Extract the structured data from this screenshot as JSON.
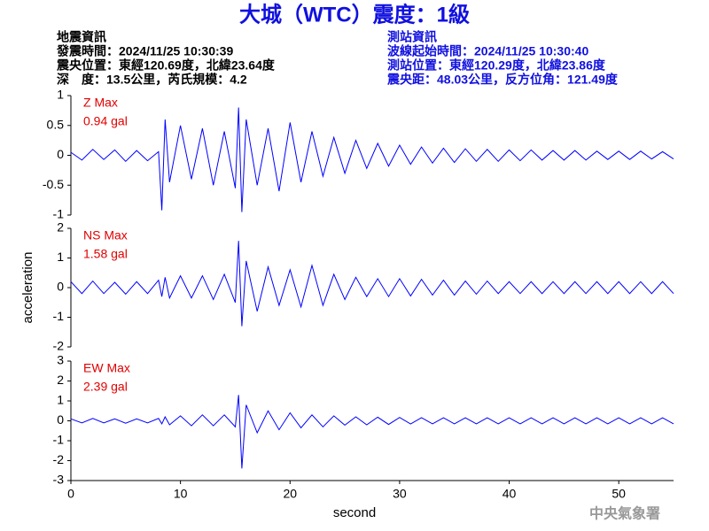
{
  "header": {
    "title": "大城（WTC）震度：1級",
    "left": [
      "地震資訊",
      "發震時間：2024/11/25 10:30:39",
      "震央位置：東經120.69度，北緯23.64度",
      "深　度：13.5公里，芮氏規模：4.2"
    ],
    "right": [
      "測站資訊",
      "波線起始時間：2024/11/25 10:30:40",
      "測站位置：東經120.29度，北緯23.86度",
      "震央距：48.03公里，反方位角：121.49度"
    ]
  },
  "footer": "中央氣象署",
  "chart_data": [
    {
      "type": "line",
      "annotations": [
        "Z Max",
        "0.94 gal"
      ],
      "xlim": [
        0,
        55
      ],
      "ylim": [
        -1,
        1
      ],
      "yticks": [
        -1,
        -0.5,
        0,
        0.5,
        1
      ],
      "x": [
        0,
        1,
        2,
        3,
        4,
        5,
        6,
        7,
        8,
        8.3,
        8.6,
        9,
        10,
        11,
        12,
        13,
        14,
        15,
        15.3,
        15.6,
        16,
        17,
        18,
        19,
        20,
        21,
        22,
        23,
        24,
        25,
        26,
        27,
        28,
        29,
        30,
        31,
        32,
        33,
        34,
        35,
        36,
        37,
        38,
        39,
        40,
        41,
        42,
        43,
        44,
        45,
        46,
        47,
        48,
        49,
        50,
        51,
        52,
        53,
        54,
        55
      ],
      "series": [
        {
          "name": "Z",
          "color": "#0000ff",
          "values": [
            0.05,
            -0.08,
            0.1,
            -0.07,
            0.09,
            -0.1,
            0.08,
            -0.09,
            0.06,
            -0.92,
            0.6,
            -0.45,
            0.5,
            -0.4,
            0.45,
            -0.5,
            0.4,
            -0.55,
            0.8,
            -0.95,
            0.6,
            -0.5,
            0.45,
            -0.6,
            0.55,
            -0.45,
            0.4,
            -0.35,
            0.3,
            -0.3,
            0.25,
            -0.22,
            0.2,
            -0.18,
            0.17,
            -0.15,
            0.14,
            -0.13,
            0.12,
            -0.12,
            0.11,
            -0.1,
            0.1,
            -0.1,
            0.09,
            -0.09,
            0.09,
            -0.08,
            0.08,
            -0.08,
            0.08,
            -0.08,
            0.07,
            -0.07,
            0.07,
            -0.07,
            0.07,
            -0.06,
            0.06,
            -0.06
          ]
        }
      ]
    },
    {
      "type": "line",
      "annotations": [
        "NS Max",
        "1.58 gal"
      ],
      "ylabel": "acceleration",
      "xlim": [
        0,
        55
      ],
      "ylim": [
        -2,
        2
      ],
      "yticks": [
        -2,
        -1,
        0,
        1,
        2
      ],
      "x": [
        0,
        1,
        2,
        3,
        4,
        5,
        6,
        7,
        8,
        8.3,
        8.6,
        9,
        10,
        11,
        12,
        13,
        14,
        15,
        15.3,
        15.6,
        16,
        17,
        18,
        19,
        20,
        21,
        22,
        23,
        24,
        25,
        26,
        27,
        28,
        29,
        30,
        31,
        32,
        33,
        34,
        35,
        36,
        37,
        38,
        39,
        40,
        41,
        42,
        43,
        44,
        45,
        46,
        47,
        48,
        49,
        50,
        51,
        52,
        53,
        54,
        55
      ],
      "series": [
        {
          "name": "NS",
          "color": "#0000ff",
          "values": [
            0.2,
            -0.2,
            0.22,
            -0.2,
            0.18,
            -0.22,
            0.2,
            -0.2,
            0.25,
            -0.3,
            0.35,
            -0.35,
            0.4,
            -0.35,
            0.4,
            -0.4,
            0.45,
            -0.5,
            1.58,
            -1.3,
            0.9,
            -0.8,
            0.7,
            -0.6,
            0.6,
            -0.65,
            0.75,
            -0.6,
            0.45,
            -0.4,
            0.35,
            -0.3,
            0.3,
            -0.3,
            0.3,
            -0.28,
            0.28,
            -0.25,
            0.25,
            -0.25,
            0.22,
            -0.22,
            0.22,
            -0.2,
            0.2,
            -0.2,
            0.2,
            -0.2,
            0.2,
            -0.2,
            0.2,
            -0.2,
            0.2,
            -0.2,
            0.2,
            -0.2,
            0.2,
            -0.2,
            0.2,
            -0.2
          ]
        }
      ]
    },
    {
      "type": "line",
      "annotations": [
        "EW Max",
        "2.39 gal"
      ],
      "xlabel": "second",
      "xlim": [
        0,
        55
      ],
      "ylim": [
        -3,
        3
      ],
      "yticks": [
        -3,
        -2,
        -1,
        0,
        1,
        2,
        3
      ],
      "xticks": [
        0,
        10,
        20,
        30,
        40,
        50
      ],
      "x": [
        0,
        1,
        2,
        3,
        4,
        5,
        6,
        7,
        8,
        8.3,
        8.6,
        9,
        10,
        11,
        12,
        13,
        14,
        15,
        15.3,
        15.6,
        16,
        17,
        18,
        19,
        20,
        21,
        22,
        23,
        24,
        25,
        26,
        27,
        28,
        29,
        30,
        31,
        32,
        33,
        34,
        35,
        36,
        37,
        38,
        39,
        40,
        41,
        42,
        43,
        44,
        45,
        46,
        47,
        48,
        49,
        50,
        51,
        52,
        53,
        54,
        55
      ],
      "series": [
        {
          "name": "EW",
          "color": "#0000ff",
          "values": [
            0.1,
            -0.1,
            0.12,
            -0.1,
            0.1,
            -0.12,
            0.1,
            -0.1,
            0.12,
            -0.15,
            0.2,
            -0.2,
            0.25,
            -0.25,
            0.3,
            -0.25,
            0.3,
            -0.3,
            1.3,
            -2.39,
            0.8,
            -0.6,
            0.5,
            -0.45,
            0.4,
            -0.35,
            0.3,
            -0.3,
            0.25,
            -0.22,
            0.2,
            -0.2,
            0.18,
            -0.18,
            0.17,
            -0.16,
            0.16,
            -0.15,
            0.15,
            -0.15,
            0.15,
            -0.15,
            0.15,
            -0.15,
            0.15,
            -0.15,
            0.15,
            -0.15,
            0.15,
            -0.15,
            0.15,
            -0.15,
            0.15,
            -0.15,
            0.15,
            -0.15,
            0.15,
            -0.15,
            0.15,
            -0.15
          ]
        }
      ]
    }
  ]
}
